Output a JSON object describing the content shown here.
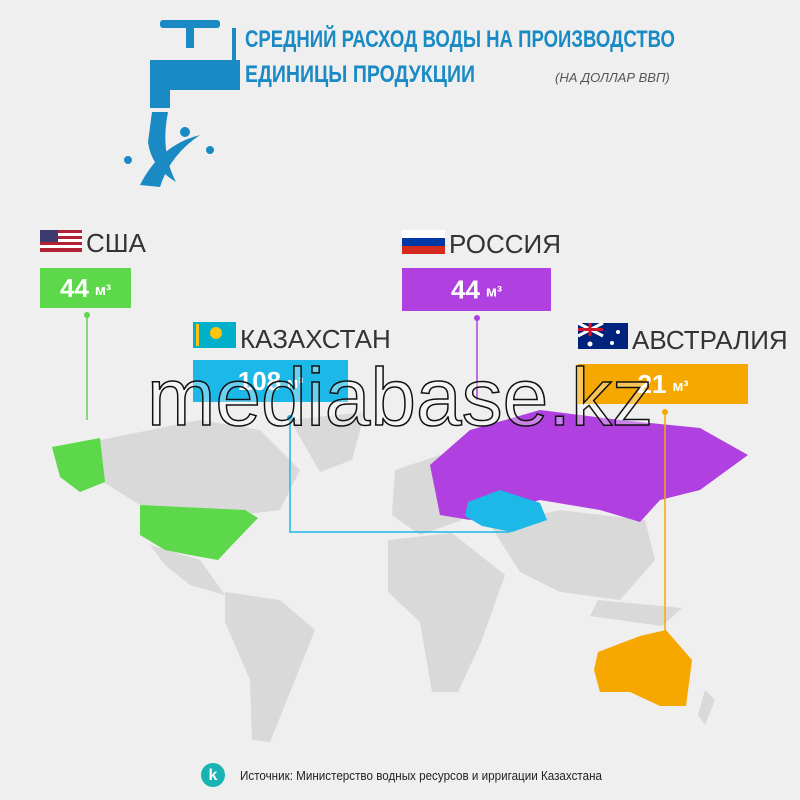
{
  "header": {
    "title_lines": [
      "СРЕДНИЙ РАСХОД ВОДЫ НА ПРОИЗВОДСТВО",
      "ЕДИНИЦЫ ПРОДУКЦИИ"
    ],
    "subtitle": "(НА ДОЛЛАР ВВП)"
  },
  "countries": [
    {
      "name": "США",
      "value": 44,
      "unit": "м³"
    },
    {
      "name": "КАЗАХСТАН",
      "value": 108,
      "unit": "м³"
    },
    {
      "name": "РОССИЯ",
      "value": 44,
      "unit": "м³"
    },
    {
      "name": "АВСТРАЛИЯ",
      "value": 21,
      "unit": "м³"
    }
  ],
  "watermark": "mediabase.kz",
  "footer": {
    "logo": "k",
    "source": "Источник: Министерство водных ресурсов и ирригации Казахстана"
  }
}
